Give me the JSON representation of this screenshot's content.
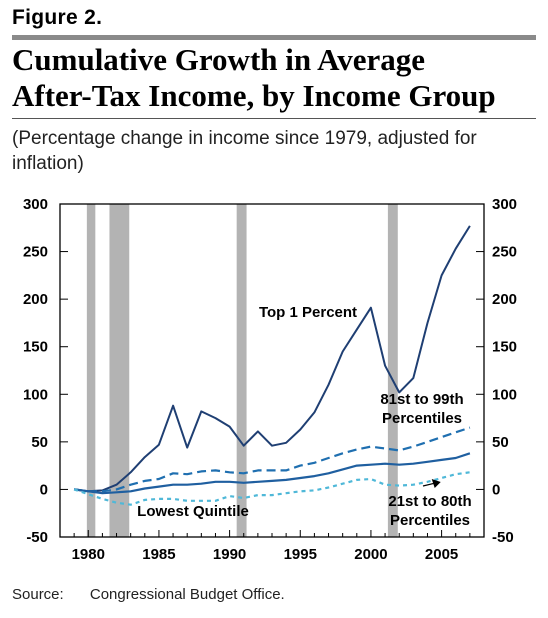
{
  "figure_label": "Figure 2.",
  "title_line1": "Cumulative Growth in Average",
  "title_line2": "After-Tax Income, by Income Group",
  "subtitle": "(Percentage change in income since 1979, adjusted for inflation)",
  "source_label": "Source:",
  "source_text": "Congressional Budget Office.",
  "colors": {
    "top1": "#1f3f73",
    "p81_99": "#1f6fb0",
    "p21_80": "#1f5fa0",
    "lowest": "#4fb8d8",
    "recession": "#b3b3b3"
  },
  "chart_data": {
    "type": "line",
    "title": "",
    "xlabel": "",
    "ylabel": "",
    "xlim": [
      1978,
      2008
    ],
    "ylim": [
      -50,
      300
    ],
    "yticks": [
      -50,
      0,
      50,
      100,
      150,
      200,
      250,
      300
    ],
    "xticks": [
      1980,
      1985,
      1990,
      1995,
      2000,
      2005
    ],
    "grid": false,
    "recessions": [
      [
        1979.9,
        1980.5
      ],
      [
        1981.5,
        1982.9
      ],
      [
        1990.5,
        1991.2
      ],
      [
        2001.2,
        2001.9
      ]
    ],
    "x": [
      1979,
      1980,
      1981,
      1982,
      1983,
      1984,
      1985,
      1986,
      1987,
      1988,
      1989,
      1990,
      1991,
      1992,
      1993,
      1994,
      1995,
      1996,
      1997,
      1998,
      1999,
      2000,
      2001,
      2002,
      2003,
      2004,
      2005,
      2006,
      2007
    ],
    "series": [
      {
        "name": "Top 1 Percent",
        "style": "solid",
        "values": [
          0,
          -2,
          -1,
          5,
          18,
          34,
          47,
          88,
          44,
          82,
          75,
          66,
          46,
          61,
          46,
          49,
          63,
          81,
          110,
          145,
          168,
          191,
          130,
          102,
          117,
          175,
          225,
          253,
          277
        ]
      },
      {
        "name": "81st to 99th Percentiles",
        "style": "dashed",
        "values": [
          0,
          -2,
          -2,
          0,
          5,
          9,
          11,
          17,
          16,
          19,
          20,
          18,
          17,
          20,
          20,
          20,
          25,
          28,
          33,
          38,
          42,
          45,
          43,
          41,
          45,
          50,
          55,
          60,
          65
        ]
      },
      {
        "name": "21st to 80th Percentiles",
        "style": "solid",
        "values": [
          0,
          -2,
          -4,
          -3,
          -2,
          1,
          3,
          5,
          5,
          6,
          8,
          8,
          7,
          8,
          9,
          10,
          12,
          14,
          17,
          21,
          25,
          26,
          27,
          26,
          27,
          29,
          31,
          33,
          38
        ]
      },
      {
        "name": "Lowest Quintile",
        "style": "dotted",
        "values": [
          0,
          -5,
          -10,
          -14,
          -16,
          -11,
          -10,
          -10,
          -12,
          -12,
          -12,
          -7,
          -9,
          -6,
          -6,
          -4,
          -2,
          -1,
          2,
          6,
          10,
          11,
          5,
          4,
          5,
          8,
          12,
          16,
          18
        ]
      }
    ],
    "annotations": [
      {
        "text": "Top 1 Percent",
        "series": 0
      },
      {
        "text": "81st to 99th Percentiles",
        "series": 1
      },
      {
        "text": "21st to 80th Percentiles",
        "series": 2
      },
      {
        "text": "Lowest Quintile",
        "series": 3
      }
    ]
  }
}
